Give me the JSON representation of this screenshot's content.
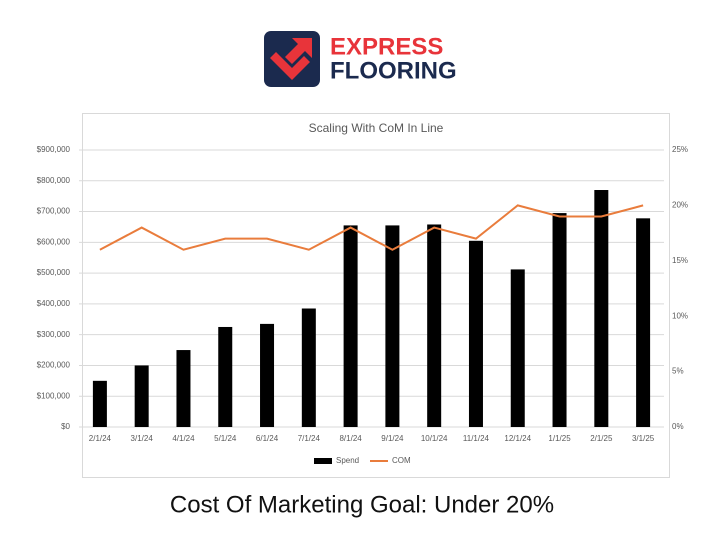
{
  "logo": {
    "line1": "EXPRESS",
    "line2": "FLOORING"
  },
  "caption": "Cost Of Marketing Goal: Under 20%",
  "chart_data": {
    "type": "bar",
    "title": "Scaling With CoM In Line",
    "categories": [
      "2/1/24",
      "3/1/24",
      "4/1/24",
      "5/1/24",
      "6/1/24",
      "7/1/24",
      "8/1/24",
      "9/1/24",
      "10/1/24",
      "11/1/24",
      "12/1/24",
      "1/1/25",
      "2/1/25",
      "3/1/25"
    ],
    "series": [
      {
        "name": "Spend",
        "type": "bar",
        "color": "#000000",
        "values": [
          150000,
          200000,
          250000,
          325000,
          335000,
          385000,
          655000,
          655000,
          658000,
          605000,
          512000,
          695000,
          770000,
          678000
        ]
      },
      {
        "name": "COM",
        "type": "line",
        "axis": "y2",
        "color": "#e97c3c",
        "values": [
          16,
          18,
          16,
          17,
          17,
          16,
          18,
          16,
          18,
          17,
          20,
          19,
          19,
          20
        ]
      }
    ],
    "ylim": [
      0,
      900000
    ],
    "yticks": [
      {
        "value": 0,
        "label": "$0"
      },
      {
        "value": 100000,
        "label": "$100,000"
      },
      {
        "value": 200000,
        "label": "$200,000"
      },
      {
        "value": 300000,
        "label": "$300,000"
      },
      {
        "value": 400000,
        "label": "$400,000"
      },
      {
        "value": 500000,
        "label": "$500,000"
      },
      {
        "value": 600000,
        "label": "$600,000"
      },
      {
        "value": 700000,
        "label": "$700,000"
      },
      {
        "value": 800000,
        "label": "$800,000"
      },
      {
        "value": 900000,
        "label": "$900,000"
      }
    ],
    "y2lim": [
      0,
      25
    ],
    "y2ticks": [
      {
        "value": 0,
        "label": "0%"
      },
      {
        "value": 5,
        "label": "5%"
      },
      {
        "value": 10,
        "label": "10%"
      },
      {
        "value": 15,
        "label": "15%"
      },
      {
        "value": 20,
        "label": "20%"
      },
      {
        "value": 25,
        "label": "25%"
      }
    ],
    "grid": true,
    "legend": "bottom"
  }
}
